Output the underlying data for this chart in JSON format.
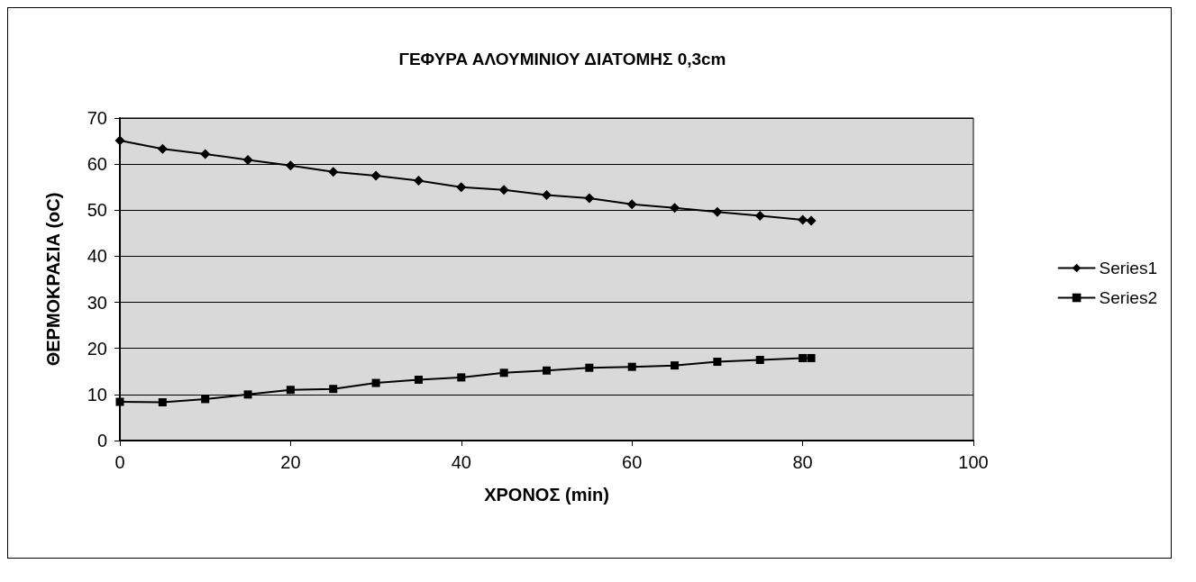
{
  "chart_data": {
    "type": "line",
    "title": "ΓΕΦΥΡΑ ΑΛΟΥΜΙΝΙΟΥ ΔΙΑΤΟΜΗΣ 0,3cm",
    "xlabel": "ΧΡΟΝΟΣ (min)",
    "ylabel": "ΘΕΡΜΟΚΡΑΣΙΑ (oC)",
    "x": [
      0,
      5,
      10,
      15,
      20,
      25,
      30,
      35,
      40,
      45,
      50,
      55,
      60,
      65,
      70,
      75,
      80,
      81
    ],
    "series": [
      {
        "name": "Series1",
        "color": "#000000",
        "marker": "diamond",
        "values": [
          65.1,
          63.3,
          62.2,
          60.9,
          59.7,
          58.3,
          57.5,
          56.4,
          55.0,
          54.4,
          53.3,
          52.6,
          51.3,
          50.5,
          49.6,
          48.8,
          47.9,
          47.7
        ]
      },
      {
        "name": "Series2",
        "color": "#000000",
        "marker": "square",
        "values": [
          8.4,
          8.3,
          9.0,
          10.0,
          11.0,
          11.2,
          12.5,
          13.2,
          13.7,
          14.7,
          15.2,
          15.8,
          16.0,
          16.3,
          17.1,
          17.5,
          17.9,
          17.9
        ]
      }
    ],
    "xlim": [
      0,
      100
    ],
    "xticks": [
      0,
      20,
      40,
      60,
      80,
      100
    ],
    "ylim": [
      0,
      70
    ],
    "yticks": [
      0,
      10,
      20,
      30,
      40,
      50,
      60,
      70
    ],
    "grid": "y",
    "legend": "right",
    "line_style": "solid"
  }
}
